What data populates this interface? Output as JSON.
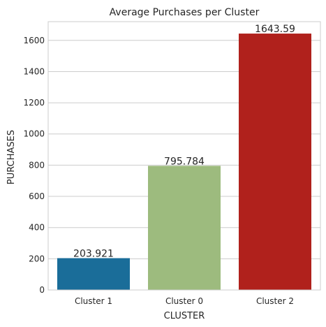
{
  "chart_data": {
    "type": "bar",
    "title": "Average Purchases per Cluster",
    "xlabel": "CLUSTER",
    "ylabel": "PURCHASES",
    "categories": [
      "Cluster 1",
      "Cluster 0",
      "Cluster 2"
    ],
    "values": [
      203.921,
      795.784,
      1643.59
    ],
    "value_labels": [
      "203.921",
      "795.784",
      "1643.59"
    ],
    "colors": [
      "#1a6d99",
      "#9dbb7e",
      "#b0211c"
    ],
    "ylim": [
      0,
      1720
    ],
    "yticks": [
      0,
      200,
      400,
      600,
      800,
      1000,
      1200,
      1400,
      1600
    ],
    "ytick_labels": [
      "0",
      "200",
      "400",
      "600",
      "800",
      "1000",
      "1200",
      "1400",
      "1600"
    ],
    "grid": true,
    "legend": "none"
  }
}
